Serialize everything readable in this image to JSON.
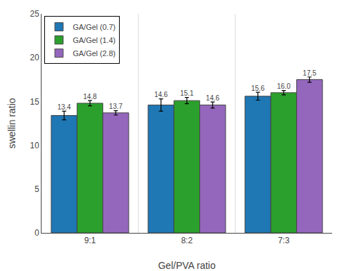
{
  "chart_data": {
    "type": "bar",
    "xlabel": "Gel/PVA ratio",
    "ylabel": "swellin ratio",
    "categories": [
      "9:1",
      "8:2",
      "7:3"
    ],
    "series": [
      {
        "name": "GA/Gel (0.7)",
        "values": [
          13.4,
          14.6,
          15.6
        ],
        "errors": [
          0.5,
          0.7,
          0.45
        ],
        "value_labels": [
          "13.4",
          "14.6",
          "15.6"
        ]
      },
      {
        "name": "GA/Gel (1.4)",
        "values": [
          14.8,
          15.1,
          16.0
        ],
        "errors": [
          0.3,
          0.35,
          0.25
        ],
        "value_labels": [
          "14.8",
          "15.1",
          "16.0"
        ]
      },
      {
        "name": "GA/Gel (2.8)",
        "values": [
          13.7,
          14.6,
          17.5
        ],
        "errors": [
          0.25,
          0.35,
          0.3
        ],
        "value_labels": [
          "13.7",
          "14.6",
          "17.5"
        ]
      }
    ],
    "ylim": [
      0,
      25
    ],
    "yticks": [
      0,
      5,
      10,
      15,
      20,
      25
    ],
    "grid": false,
    "legend": "upper left",
    "data_labels": true
  }
}
